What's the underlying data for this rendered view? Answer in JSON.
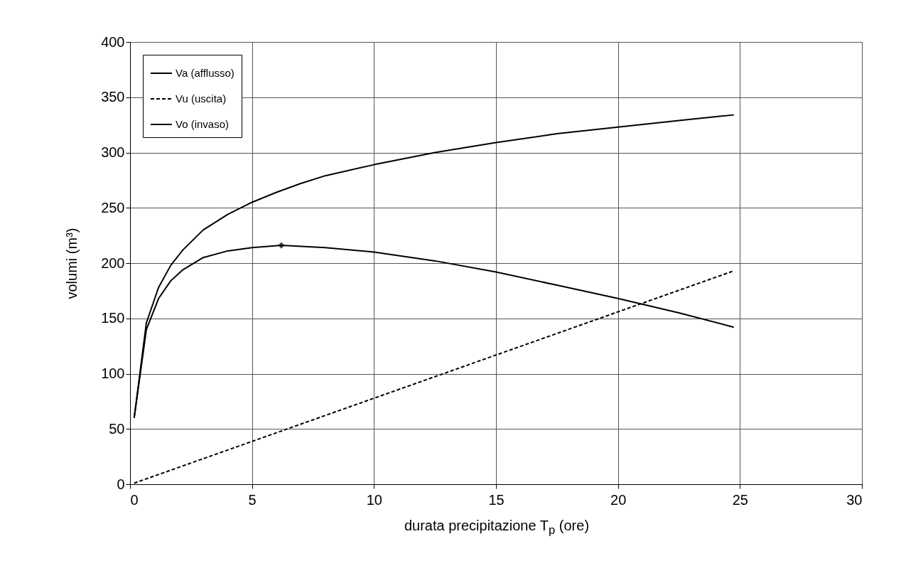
{
  "chart_data": {
    "type": "line",
    "xlabel": "durata precipitazione  T$_{p}$ (ore)",
    "ylabel": "volumi  (m³)",
    "xlim": [
      0,
      30
    ],
    "xticks": [
      0,
      5,
      10,
      15,
      20,
      25,
      30
    ],
    "ylim": [
      0,
      400
    ],
    "yticks": [
      0,
      50,
      100,
      150,
      200,
      250,
      300,
      350,
      400
    ],
    "grid": true,
    "legend": "top left",
    "marker": "none",
    "series": [
      {
        "name": "Va (afflusso)",
        "color": "#000000",
        "line_style": "solid",
        "x": [
          0.17,
          0.67,
          1.17,
          1.67,
          2.17,
          3,
          4,
          5,
          6,
          7,
          8,
          10,
          12.5,
          15,
          17.5,
          20,
          22.5,
          24.75
        ],
        "values": [
          60,
          146,
          178,
          198,
          212,
          230,
          244,
          255,
          264,
          272,
          279,
          289,
          300,
          309,
          317,
          323,
          329,
          334
        ]
      },
      {
        "name": "Vu (uscita)",
        "color": "#000000",
        "line_style": "dashed",
        "x": [
          0.17,
          24.75
        ],
        "values": [
          1,
          193
        ]
      },
      {
        "name": "Vo (invaso)",
        "color": "#000000",
        "line_style": "solid",
        "x": [
          0.17,
          0.67,
          1.17,
          1.67,
          2.17,
          3,
          4,
          5,
          6.2,
          8,
          10,
          12.5,
          15,
          17.5,
          20,
          22.5,
          24.75
        ],
        "values": [
          60,
          140,
          168,
          184,
          194,
          205,
          211,
          214,
          216,
          214,
          210,
          202,
          192,
          180,
          168,
          155,
          142
        ]
      },
      {
        "type": "scatter",
        "marker": "diamond",
        "color": "#000000",
        "x": [
          6.2
        ],
        "values": [
          216
        ]
      }
    ]
  }
}
